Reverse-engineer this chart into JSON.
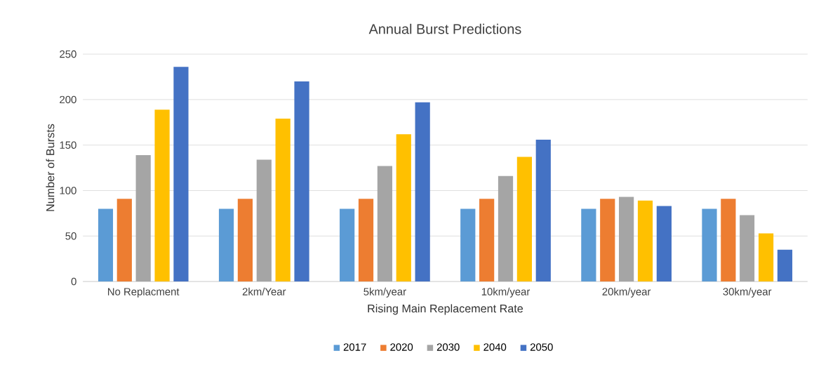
{
  "chart_data": {
    "type": "bar",
    "title": "Annual Burst Predictions",
    "xlabel": "Rising Main Replacement Rate",
    "ylabel": "Number of Bursts",
    "categories": [
      "No Replacment",
      "2km/Year",
      "5km/year",
      "10km/year",
      "20km/year",
      "30km/year"
    ],
    "series": [
      {
        "name": "2017",
        "color": "#5b9bd5",
        "values": [
          80,
          80,
          80,
          80,
          80,
          80
        ]
      },
      {
        "name": "2020",
        "color": "#ed7d31",
        "values": [
          91,
          91,
          91,
          91,
          91,
          91
        ]
      },
      {
        "name": "2030",
        "color": "#a5a5a5",
        "values": [
          139,
          134,
          127,
          116,
          93,
          73
        ]
      },
      {
        "name": "2040",
        "color": "#ffc000",
        "values": [
          189,
          179,
          162,
          137,
          89,
          53
        ]
      },
      {
        "name": "2050",
        "color": "#4472c4",
        "values": [
          236,
          220,
          197,
          156,
          83,
          35
        ]
      }
    ],
    "ylim": [
      0,
      250
    ],
    "yticks": [
      0,
      50,
      100,
      150,
      200,
      250
    ],
    "grid": "y",
    "legend": "bottom"
  }
}
